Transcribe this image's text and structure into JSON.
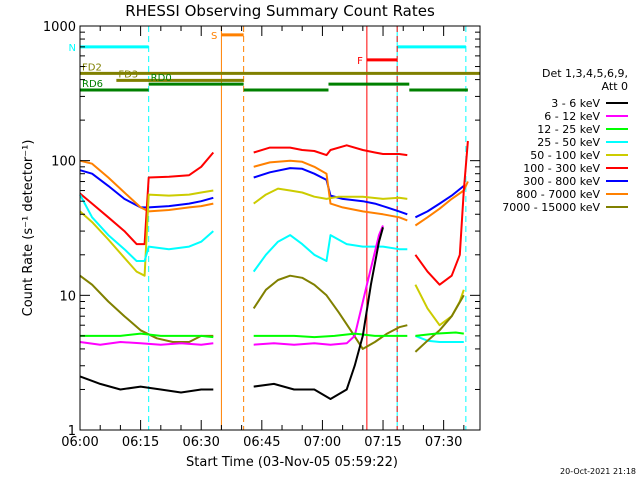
{
  "chart_data": {
    "type": "line",
    "title": "RHESSI Observing Summary Count Rates",
    "xlabel": "Start Time (03-Nov-05 05:59:22)",
    "ylabel": "Count Rate (s⁻¹ detector⁻¹)",
    "yscale": "log",
    "ylim": [
      1,
      1000
    ],
    "xlim_minutes": [
      0,
      99
    ],
    "x_ticks": [
      {
        "t": 0,
        "label": "06:00"
      },
      {
        "t": 15,
        "label": "06:15"
      },
      {
        "t": 30,
        "label": "06:30"
      },
      {
        "t": 45,
        "label": "06:45"
      },
      {
        "t": 60,
        "label": "07:00"
      },
      {
        "t": 75,
        "label": "07:15"
      },
      {
        "t": 90,
        "label": "07:30"
      }
    ],
    "y_ticks": [
      {
        "v": 1,
        "label": "1"
      },
      {
        "v": 10,
        "label": "10"
      },
      {
        "v": 100,
        "label": "100"
      },
      {
        "v": 1000,
        "label": "1000"
      }
    ],
    "legend": {
      "header": [
        "Det 1,3,4,5,6,9,",
        "Att 0"
      ],
      "entries": [
        {
          "label": "3 - 6 keV",
          "color": "#000000"
        },
        {
          "label": "6 - 12 keV",
          "color": "#ff00ff"
        },
        {
          "label": "12 - 25 keV",
          "color": "#00ff00"
        },
        {
          "label": "25 - 50 keV",
          "color": "#00ffff"
        },
        {
          "label": "50 - 100 keV",
          "color": "#cccc00"
        },
        {
          "label": "100 - 300 keV",
          "color": "#ff0000"
        },
        {
          "label": "300 - 800 keV",
          "color": "#0000ff"
        },
        {
          "label": "800 - 7000 keV",
          "color": "#ff8000"
        },
        {
          "label": "7000 - 15000 keV",
          "color": "#808000"
        }
      ]
    },
    "night_intervals": [
      {
        "start": 0,
        "end": 17,
        "color": "#00ffff",
        "label": "N",
        "ylevel": 700
      },
      {
        "start": 78.5,
        "end": 95.5,
        "color": "#00ffff",
        "label": "",
        "ylevel": 700
      }
    ],
    "saa_intervals": [
      {
        "start": 35,
        "end": 40.5,
        "color": "#ff8000",
        "label": "S",
        "ylevel": 860
      }
    ],
    "flare_intervals": [
      {
        "start": 71,
        "end": 78.5,
        "color": "#ff0000",
        "label": "F",
        "ylevel": 560
      }
    ],
    "decimation_bars": [
      {
        "label": "FD2",
        "start": 0,
        "end": 99,
        "color": "#808000",
        "ylevel": 445
      },
      {
        "label": "FD3",
        "start": 9,
        "end": 40.5,
        "color": "#808000",
        "ylevel": 395
      },
      {
        "label": "RD0",
        "start": 17,
        "end": 40.5,
        "color": "#008000",
        "ylevel": 370
      },
      {
        "label": "RD6",
        "start": 0,
        "end": 17,
        "color": "#008000",
        "ylevel": 335
      },
      {
        "label": "",
        "start": 40.5,
        "end": 61.5,
        "color": "#008000",
        "ylevel": 335
      },
      {
        "label": "",
        "start": 61.5,
        "end": 81.5,
        "color": "#008000",
        "ylevel": 370
      },
      {
        "label": "",
        "start": 81.5,
        "end": 96,
        "color": "#008000",
        "ylevel": 335
      }
    ],
    "series": [
      {
        "name": "300 - 800 keV",
        "color": "#0000ff",
        "segments": [
          [
            [
              0,
              85
            ],
            [
              3,
              80
            ],
            [
              7,
              65
            ],
            [
              11,
              52
            ],
            [
              15,
              45
            ],
            [
              17,
              45
            ],
            [
              22,
              46
            ],
            [
              27,
              48
            ],
            [
              30,
              50
            ],
            [
              33,
              53
            ]
          ],
          [
            [
              43,
              75
            ],
            [
              47,
              82
            ],
            [
              52,
              88
            ],
            [
              55,
              87
            ],
            [
              58,
              80
            ],
            [
              61,
              72
            ],
            [
              62,
              55
            ],
            [
              65,
              52
            ],
            [
              70,
              50
            ],
            [
              73,
              48
            ],
            [
              76,
              45
            ],
            [
              79,
              42
            ],
            [
              81,
              40
            ]
          ],
          [
            [
              83,
              38
            ],
            [
              86,
              42
            ],
            [
              89,
              48
            ],
            [
              92,
              55
            ],
            [
              95,
              65
            ]
          ]
        ]
      },
      {
        "name": "800 - 7000 keV",
        "color": "#ff8000",
        "segments": [
          [
            [
              0,
              100
            ],
            [
              3,
              95
            ],
            [
              7,
              75
            ],
            [
              11,
              58
            ],
            [
              15,
              45
            ],
            [
              17,
              42
            ],
            [
              22,
              43
            ],
            [
              27,
              45
            ],
            [
              30,
              46
            ],
            [
              33,
              48
            ]
          ],
          [
            [
              43,
              90
            ],
            [
              47,
              97
            ],
            [
              52,
              100
            ],
            [
              55,
              98
            ],
            [
              58,
              90
            ],
            [
              61,
              80
            ],
            [
              62,
              48
            ],
            [
              65,
              45
            ],
            [
              70,
              42
            ],
            [
              75,
              40
            ],
            [
              79,
              38
            ],
            [
              81,
              36
            ]
          ],
          [
            [
              83,
              33
            ],
            [
              86,
              38
            ],
            [
              89,
              44
            ],
            [
              92,
              52
            ],
            [
              95,
              60
            ],
            [
              96,
              70
            ]
          ]
        ]
      },
      {
        "name": "100 - 300 keV",
        "color": "#ff0000",
        "segments": [
          [
            [
              0,
              57
            ],
            [
              3,
              48
            ],
            [
              7,
              38
            ],
            [
              11,
              30
            ],
            [
              14,
              24
            ],
            [
              16,
              24
            ],
            [
              17,
              75
            ],
            [
              22,
              76
            ],
            [
              27,
              78
            ],
            [
              30,
              90
            ],
            [
              33,
              115
            ]
          ],
          [
            [
              43,
              115
            ],
            [
              47,
              125
            ],
            [
              52,
              125
            ],
            [
              55,
              120
            ],
            [
              58,
              118
            ],
            [
              61,
              110
            ],
            [
              62,
              120
            ],
            [
              66,
              130
            ],
            [
              70,
              120
            ],
            [
              73,
              115
            ],
            [
              75,
              112
            ],
            [
              79,
              112
            ],
            [
              81,
              110
            ]
          ],
          [
            [
              83,
              20
            ],
            [
              86,
              15
            ],
            [
              89,
              12
            ],
            [
              92,
              14
            ],
            [
              94,
              20
            ],
            [
              95,
              60
            ],
            [
              96,
              140
            ]
          ]
        ]
      },
      {
        "name": "50 - 100 keV",
        "color": "#cccc00",
        "segments": [
          [
            [
              0,
              42
            ],
            [
              3,
              35
            ],
            [
              7,
              26
            ],
            [
              11,
              19
            ],
            [
              14,
              15
            ],
            [
              16,
              14
            ],
            [
              17,
              56
            ],
            [
              22,
              55
            ],
            [
              27,
              56
            ],
            [
              30,
              58
            ],
            [
              33,
              60
            ]
          ],
          [
            [
              43,
              48
            ],
            [
              46,
              56
            ],
            [
              49,
              62
            ],
            [
              52,
              60
            ],
            [
              55,
              58
            ],
            [
              58,
              54
            ],
            [
              61,
              52
            ],
            [
              64,
              54
            ],
            [
              70,
              54
            ],
            [
              75,
              52
            ],
            [
              79,
              53
            ],
            [
              81,
              52
            ]
          ],
          [
            [
              83,
              12
            ],
            [
              86,
              8
            ],
            [
              89,
              6
            ],
            [
              92,
              7
            ],
            [
              94,
              9
            ],
            [
              95,
              11
            ]
          ]
        ]
      },
      {
        "name": "25 - 50 keV",
        "color": "#00ffff",
        "segments": [
          [
            [
              0,
              56
            ],
            [
              3,
              38
            ],
            [
              7,
              28
            ],
            [
              11,
              22
            ],
            [
              14,
              18
            ],
            [
              16,
              18
            ],
            [
              17,
              23
            ],
            [
              22,
              22
            ],
            [
              27,
              23
            ],
            [
              30,
              25
            ],
            [
              33,
              30
            ]
          ],
          [
            [
              43,
              15
            ],
            [
              46,
              20
            ],
            [
              49,
              25
            ],
            [
              52,
              28
            ],
            [
              55,
              24
            ],
            [
              58,
              20
            ],
            [
              61,
              18
            ],
            [
              62,
              28
            ],
            [
              66,
              24
            ],
            [
              70,
              23
            ],
            [
              75,
              23
            ],
            [
              79,
              22
            ],
            [
              81,
              22
            ]
          ],
          [
            [
              83,
              5
            ],
            [
              86,
              4.6
            ],
            [
              89,
              4.5
            ],
            [
              92,
              4.5
            ],
            [
              95,
              4.5
            ]
          ]
        ]
      },
      {
        "name": "7000 - 15000 keV",
        "color": "#808000",
        "segments": [
          [
            [
              0,
              14
            ],
            [
              3,
              12
            ],
            [
              7,
              9
            ],
            [
              11,
              7
            ],
            [
              15,
              5.5
            ],
            [
              19,
              4.8
            ],
            [
              23,
              4.5
            ],
            [
              27,
              4.5
            ],
            [
              30,
              5
            ],
            [
              33,
              5
            ]
          ],
          [
            [
              43,
              8
            ],
            [
              46,
              11
            ],
            [
              49,
              13
            ],
            [
              52,
              14
            ],
            [
              55,
              13.5
            ],
            [
              58,
              12
            ],
            [
              61,
              10
            ],
            [
              64,
              7.5
            ],
            [
              67,
              5.5
            ],
            [
              70,
              4
            ],
            [
              73,
              4.5
            ],
            [
              76,
              5.2
            ],
            [
              79,
              5.8
            ],
            [
              81,
              6
            ]
          ],
          [
            [
              83,
              3.8
            ],
            [
              86,
              4.6
            ],
            [
              89,
              5.5
            ],
            [
              92,
              7
            ],
            [
              95,
              10
            ]
          ]
        ]
      },
      {
        "name": "6 - 12 keV",
        "color": "#ff00ff",
        "segments": [
          [
            [
              0,
              4.5
            ],
            [
              5,
              4.3
            ],
            [
              10,
              4.5
            ],
            [
              15,
              4.4
            ],
            [
              20,
              4.3
            ],
            [
              25,
              4.4
            ],
            [
              30,
              4.3
            ],
            [
              33,
              4.4
            ]
          ],
          [
            [
              43,
              4.3
            ],
            [
              48,
              4.4
            ],
            [
              53,
              4.3
            ],
            [
              58,
              4.4
            ],
            [
              62,
              4.3
            ],
            [
              66,
              4.4
            ],
            [
              68,
              5
            ],
            [
              71,
              12
            ],
            [
              74,
              28
            ],
            [
              75,
              33
            ]
          ]
        ]
      },
      {
        "name": "12 - 25 keV",
        "color": "#00ff00",
        "segments": [
          [
            [
              0,
              5
            ],
            [
              5,
              5
            ],
            [
              10,
              5
            ],
            [
              15,
              5.2
            ],
            [
              20,
              5
            ],
            [
              25,
              5
            ],
            [
              30,
              5
            ],
            [
              33,
              4.9
            ]
          ],
          [
            [
              43,
              5
            ],
            [
              48,
              5
            ],
            [
              53,
              5
            ],
            [
              58,
              4.9
            ],
            [
              63,
              5
            ],
            [
              68,
              5.2
            ],
            [
              73,
              5
            ],
            [
              78,
              5
            ],
            [
              81,
              5
            ]
          ],
          [
            [
              83,
              5
            ],
            [
              88,
              5.2
            ],
            [
              93,
              5.3
            ],
            [
              95,
              5.2
            ]
          ]
        ]
      },
      {
        "name": "3 - 6 keV",
        "color": "#000000",
        "segments": [
          [
            [
              0,
              2.5
            ],
            [
              5,
              2.2
            ],
            [
              10,
              2
            ],
            [
              15,
              2.1
            ],
            [
              20,
              2
            ],
            [
              25,
              1.9
            ],
            [
              30,
              2
            ],
            [
              33,
              2
            ]
          ],
          [
            [
              43,
              2.1
            ],
            [
              48,
              2.2
            ],
            [
              53,
              2
            ],
            [
              58,
              2
            ],
            [
              62,
              1.7
            ],
            [
              66,
              2
            ],
            [
              68,
              3
            ],
            [
              70,
              5
            ],
            [
              72,
              12
            ],
            [
              74,
              25
            ],
            [
              75,
              32
            ]
          ]
        ]
      }
    ]
  },
  "footer": {
    "date_stamp": "20-Oct-2021 21:18"
  }
}
